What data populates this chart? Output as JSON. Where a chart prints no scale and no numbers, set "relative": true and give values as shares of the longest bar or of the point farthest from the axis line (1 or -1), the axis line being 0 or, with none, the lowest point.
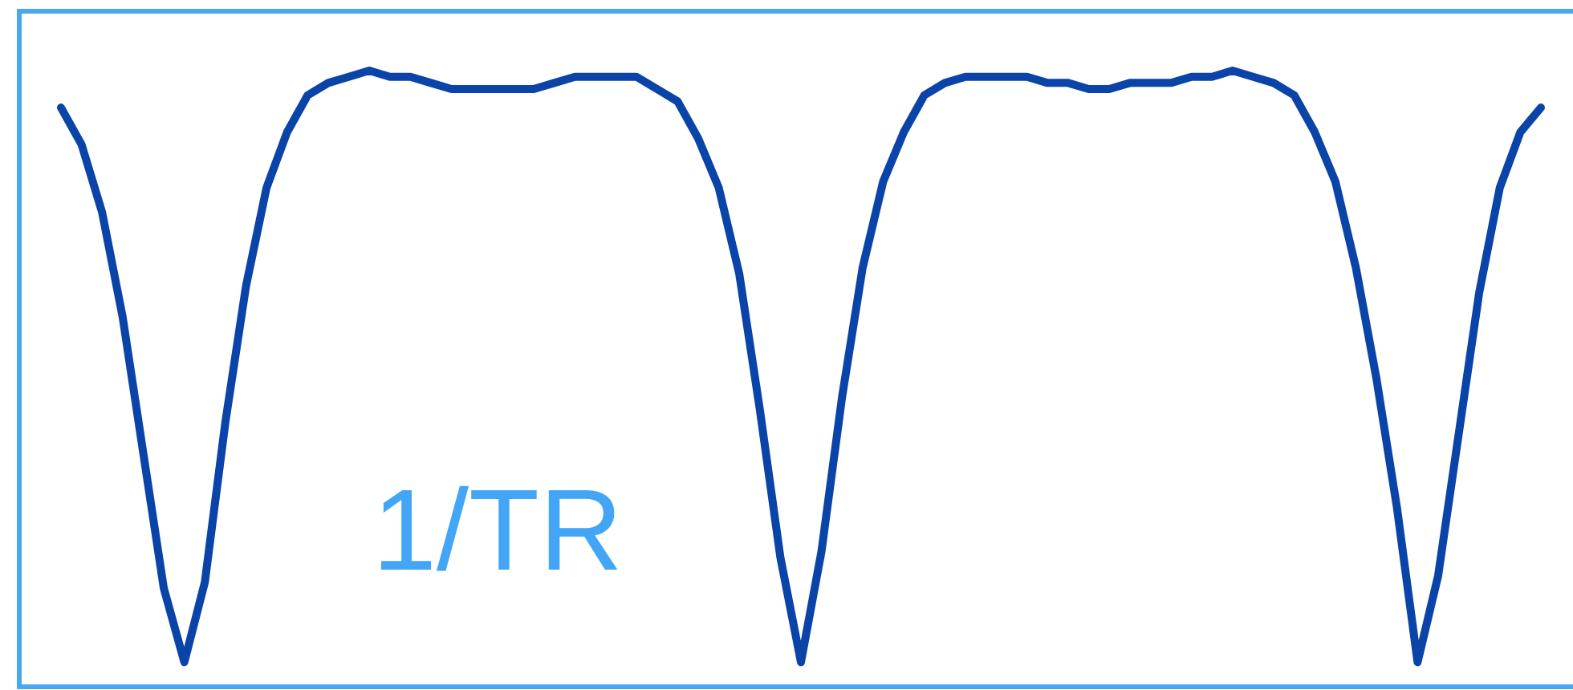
{
  "chart_data": {
    "type": "line",
    "relative": true,
    "annotations": [
      "1/TR"
    ],
    "categories": [
      null,
      null,
      null,
      null,
      null,
      null,
      null,
      null,
      null,
      null,
      null,
      null,
      null,
      null,
      null,
      null,
      null,
      null,
      null,
      null,
      null,
      null,
      null,
      null,
      null,
      null,
      null,
      null,
      null,
      null,
      null,
      null,
      null,
      null,
      null,
      null,
      null,
      null,
      null,
      null,
      null,
      null,
      null,
      null,
      null,
      null,
      null,
      null,
      null,
      null,
      null,
      null,
      null,
      null,
      null,
      null,
      null,
      null,
      null,
      null,
      null,
      null,
      null,
      null,
      null,
      null,
      null,
      null,
      null,
      null,
      null,
      null,
      null
    ],
    "series": [
      {
        "color": "#0a44a8",
        "values": [
          0.94,
          0.88,
          0.77,
          0.6,
          0.38,
          0.16,
          0.04,
          0.17,
          0.43,
          0.65,
          0.81,
          0.9,
          0.96,
          0.98,
          0.99,
          1,
          0.99,
          0.99,
          0.98,
          0.97,
          0.97,
          0.97,
          0.97,
          0.97,
          0.98,
          0.99,
          0.99,
          0.99,
          0.99,
          0.97,
          0.95,
          0.89,
          0.81,
          0.67,
          0.45,
          0.21,
          0.04,
          0.22,
          0.47,
          0.68,
          0.82,
          0.9,
          0.96,
          0.98,
          0.99,
          0.99,
          0.99,
          0.99,
          0.98,
          0.98,
          0.97,
          0.97,
          0.98,
          0.98,
          0.98,
          0.99,
          0.99,
          1,
          0.99,
          0.98,
          0.96,
          0.9,
          0.82,
          0.68,
          0.5,
          0.29,
          0.04,
          0.18,
          0.41,
          0.64,
          0.81,
          0.9,
          0.94
        ]
      }
    ],
    "marker": "none",
    "line_style": "solid"
  }
}
